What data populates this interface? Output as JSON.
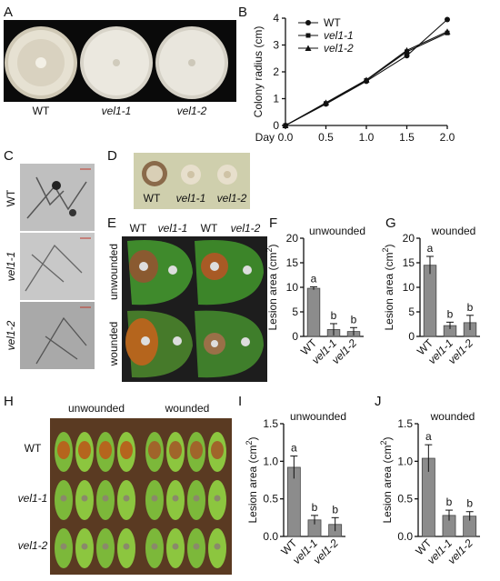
{
  "figure": {
    "panels": {
      "A": "A",
      "B": "B",
      "C": "C",
      "D": "D",
      "E": "E",
      "F": "F",
      "G": "G",
      "H": "H",
      "I": "I",
      "J": "J"
    },
    "strains": [
      "WT",
      "vel1-1",
      "vel1-2"
    ],
    "day_label": "Day",
    "col_headers_E": [
      "WT",
      "vel1-1",
      "WT",
      "vel1-2"
    ],
    "row_labels_E": [
      "unwounded",
      "wounded"
    ],
    "col_headers_H": [
      "unwounded",
      "wounded"
    ],
    "row_labels_H": [
      "WT",
      "vel1-1",
      "vel1-2"
    ],
    "colors": {
      "bar": "#8c8c8c",
      "plate": "#e8e4da",
      "leaf": "#3f8a2c",
      "leaf_dark": "#2b6a1d",
      "lesion": "#b5651d",
      "soil": "#5a3a22"
    }
  },
  "chart_data": [
    {
      "type": "line",
      "ylabel": "Colony radius (cm)",
      "xlabel": "",
      "x": [
        0.0,
        0.5,
        1.0,
        1.5,
        2.0
      ],
      "xlim": [
        0.0,
        2.0
      ],
      "ylim": [
        0,
        4
      ],
      "xticks": [
        "0.0",
        "0.5",
        "1.0",
        "1.5",
        "2.0"
      ],
      "yticks": [
        "0",
        "1",
        "2",
        "3",
        "4"
      ],
      "legend": "top-left",
      "series": [
        {
          "name": "WT",
          "marker": "circle",
          "values": [
            0.0,
            0.8,
            1.65,
            2.6,
            3.95
          ]
        },
        {
          "name": "vel1-1",
          "marker": "square",
          "values": [
            0.0,
            0.82,
            1.68,
            2.75,
            3.45
          ]
        },
        {
          "name": "vel1-2",
          "marker": "triangle",
          "values": [
            0.0,
            0.85,
            1.7,
            2.8,
            3.5
          ]
        }
      ]
    },
    {
      "type": "bar",
      "title": "unwounded",
      "ylabel": "Lesion area (cm2)",
      "categories": [
        "WT",
        "vel1-1",
        "vel1-2"
      ],
      "values": [
        9.8,
        1.4,
        1.0
      ],
      "errors": [
        0.3,
        1.2,
        0.8
      ],
      "letters": [
        "a",
        "b",
        "b"
      ],
      "ylim": [
        0,
        20
      ],
      "yticks": [
        "0",
        "5",
        "10",
        "15",
        "20"
      ]
    },
    {
      "type": "bar",
      "title": "wounded",
      "ylabel": "Lesion area (cm2)",
      "categories": [
        "WT",
        "vel1-1",
        "vel1-2"
      ],
      "values": [
        14.5,
        2.2,
        2.8
      ],
      "errors": [
        1.8,
        0.7,
        1.5
      ],
      "letters": [
        "a",
        "b",
        "b"
      ],
      "ylim": [
        0,
        20
      ],
      "yticks": [
        "0",
        "5",
        "10",
        "15",
        "20"
      ]
    },
    {
      "type": "bar",
      "title": "unwounded",
      "ylabel": "Lesion area (cm2)",
      "categories": [
        "WT",
        "vel1-1",
        "vel1-2"
      ],
      "values": [
        0.92,
        0.22,
        0.16
      ],
      "errors": [
        0.15,
        0.06,
        0.09
      ],
      "letters": [
        "a",
        "b",
        "b"
      ],
      "ylim": [
        0,
        1.5
      ],
      "yticks": [
        "0.0",
        "0.5",
        "1.0",
        "1.5"
      ]
    },
    {
      "type": "bar",
      "title": "wounded",
      "ylabel": "Lesion area (cm2)",
      "categories": [
        "WT",
        "vel1-1",
        "vel1-2"
      ],
      "values": [
        1.04,
        0.28,
        0.27
      ],
      "errors": [
        0.18,
        0.07,
        0.06
      ],
      "letters": [
        "a",
        "b",
        "b"
      ],
      "ylim": [
        0,
        1.5
      ],
      "yticks": [
        "0.0",
        "0.5",
        "1.0",
        "1.5"
      ]
    }
  ]
}
